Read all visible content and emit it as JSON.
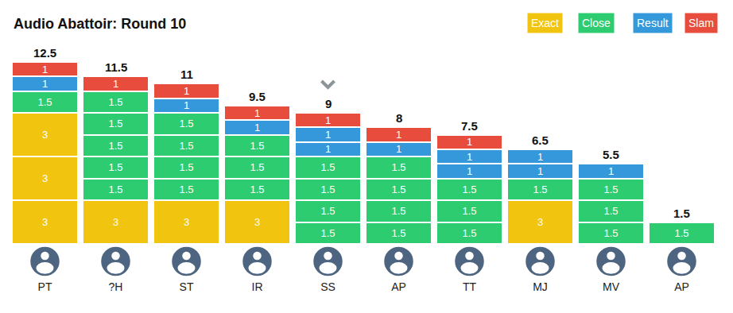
{
  "chart_data": {
    "type": "bar",
    "title": "Audio Abattoir: Round 10",
    "categories": [
      "PT",
      "?H",
      "ST",
      "IR",
      "SS",
      "AP",
      "TT",
      "MJ",
      "MV",
      "AP"
    ],
    "stacked": true,
    "data_labels": true,
    "tick_labels": "x",
    "grid": false,
    "ylim": [
      0,
      12.5
    ],
    "totals": [
      12.5,
      11.5,
      11,
      9.5,
      9,
      8,
      7.5,
      6.5,
      5.5,
      1.5
    ],
    "highlight": "SS",
    "series": [
      {
        "name": "Exact",
        "color": "#f1c40f",
        "values": [
          3,
          3,
          3,
          3,
          null,
          null,
          null,
          3,
          null,
          null
        ],
        "counts": [
          3,
          1,
          1,
          1,
          0,
          0,
          0,
          1,
          0,
          0
        ]
      },
      {
        "name": "Close",
        "color": "#2ecc71",
        "values": [
          1.5,
          1.5,
          1.5,
          1.5,
          1.5,
          1.5,
          1.5,
          1.5,
          1.5,
          1.5
        ],
        "counts": [
          1,
          5,
          4,
          3,
          4,
          4,
          3,
          1,
          3,
          1
        ]
      },
      {
        "name": "Result",
        "color": "#3498db",
        "values": [
          1,
          null,
          1,
          1,
          1,
          1,
          1,
          1,
          1,
          null
        ],
        "counts": [
          1,
          0,
          1,
          1,
          2,
          1,
          2,
          2,
          1,
          0
        ]
      },
      {
        "name": "Slam",
        "color": "#e74c3c",
        "values": [
          1,
          1,
          1,
          1,
          1,
          1,
          1,
          null,
          null,
          null
        ],
        "counts": [
          1,
          1,
          1,
          1,
          1,
          1,
          1,
          0,
          0,
          0
        ]
      }
    ]
  }
}
